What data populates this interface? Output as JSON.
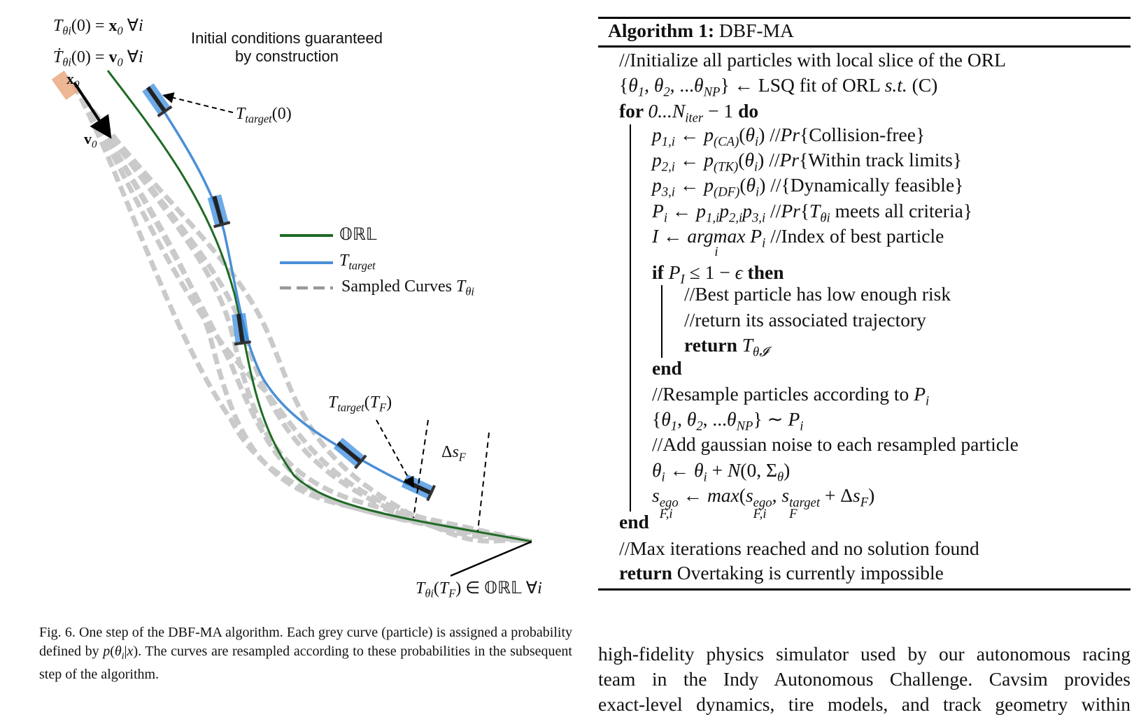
{
  "colors": {
    "orl": "#1e6b25",
    "target": "#4a8fd6",
    "sampled": "#b5b5b5",
    "car_blue": "#2e86de",
    "ego_car": "#e8a47a"
  },
  "figure": {
    "init_note": [
      "Initial conditions guaranteed",
      "by construction"
    ],
    "labels": {
      "init_pos": [
        {
          "s": "i",
          "t": "T"
        },
        {
          "s": "sub",
          "t": "θi"
        },
        {
          "s": "r",
          "t": "(0) = "
        },
        {
          "s": "b",
          "t": "x"
        },
        {
          "s": "sub",
          "t": "0"
        },
        {
          "s": "r",
          "t": " ∀"
        },
        {
          "s": "i",
          "t": "i"
        }
      ],
      "init_vel": [
        {
          "s": "i",
          "t": "Ṫ"
        },
        {
          "s": "sub",
          "t": "θi"
        },
        {
          "s": "r",
          "t": "(0) = "
        },
        {
          "s": "b",
          "t": "v"
        },
        {
          "s": "sub",
          "t": "0"
        },
        {
          "s": "r",
          "t": " ∀"
        },
        {
          "s": "i",
          "t": "i"
        }
      ],
      "x0": [
        {
          "s": "b",
          "t": "x"
        },
        {
          "s": "sub",
          "t": "0"
        }
      ],
      "v0": [
        {
          "s": "b",
          "t": "v"
        },
        {
          "s": "sub",
          "t": "0"
        }
      ],
      "target0": [
        {
          "s": "i",
          "t": "T"
        },
        {
          "s": "sub",
          "t": "target"
        },
        {
          "s": "r",
          "t": "(0)"
        }
      ],
      "targetTF": [
        {
          "s": "i",
          "t": "T"
        },
        {
          "s": "sub",
          "t": "target"
        },
        {
          "s": "r",
          "t": "("
        },
        {
          "s": "i",
          "t": "T"
        },
        {
          "s": "sub",
          "t": "F"
        },
        {
          "s": "r",
          "t": ")"
        }
      ],
      "delta_sF": [
        {
          "s": "r",
          "t": "Δ"
        },
        {
          "s": "i",
          "t": "s"
        },
        {
          "s": "sub",
          "t": "F"
        }
      ],
      "endpoint": [
        {
          "s": "i",
          "t": "T"
        },
        {
          "s": "sub",
          "t": "θi"
        },
        {
          "s": "r",
          "t": "("
        },
        {
          "s": "i",
          "t": "T"
        },
        {
          "s": "sub",
          "t": "F"
        },
        {
          "s": "r",
          "t": ") ∈ 𝕆ℝ𝕃 ∀"
        },
        {
          "s": "i",
          "t": "i"
        }
      ]
    },
    "legend": {
      "orl": [
        {
          "s": "r",
          "t": "𝕆ℝ𝕃"
        }
      ],
      "target": [
        {
          "s": "i",
          "t": "T"
        },
        {
          "s": "sub",
          "t": "target"
        }
      ],
      "sampled": [
        {
          "s": "r",
          "t": "Sampled Curves "
        },
        {
          "s": "i",
          "t": "T"
        },
        {
          "s": "sub",
          "t": "θi"
        }
      ]
    }
  },
  "caption": "Fig. 6.  One step of the DBF-MA algorithm. Each grey curve (particle) is assigned a probability defined by p(θi|x). The curves are resampled according to these probabilities in the subsequent step of the algorithm.",
  "caption_segs": [
    {
      "s": "r",
      "t": "Fig. 6.  One step of the DBF-MA algorithm. Each grey curve (particle) is assigned a probability defined by "
    },
    {
      "s": "i",
      "t": "p"
    },
    {
      "s": "r",
      "t": "("
    },
    {
      "s": "i",
      "t": "θ"
    },
    {
      "s": "sub",
      "t": "i"
    },
    {
      "s": "r",
      "t": "|"
    },
    {
      "s": "i",
      "t": "x"
    },
    {
      "s": "r",
      "t": ")"
    },
    {
      "s": "r",
      "t": ". The curves are resampled according to these probabilities in the subsequent step of the algorithm."
    }
  ],
  "algorithm": {
    "title": [
      {
        "s": "b",
        "t": "Algorithm 1:"
      },
      {
        "s": "r",
        "t": " DBF-MA"
      }
    ],
    "lines": [
      [
        {
          "s": "r",
          "t": "//Initialize all particles with local slice of the ORL"
        }
      ],
      [
        {
          "s": "r",
          "t": "{"
        },
        {
          "s": "i",
          "t": "θ"
        },
        {
          "s": "sub",
          "t": "1"
        },
        {
          "s": "r",
          "t": ", "
        },
        {
          "s": "i",
          "t": "θ"
        },
        {
          "s": "sub",
          "t": "2"
        },
        {
          "s": "r",
          "t": ", ..."
        },
        {
          "s": "i",
          "t": "θ"
        },
        {
          "s": "sub",
          "t": "NP"
        },
        {
          "s": "r",
          "t": "} ← LSQ fit of ORL "
        },
        {
          "s": "i",
          "t": "s.t."
        },
        {
          "s": "r",
          "t": " (C)"
        }
      ],
      [
        {
          "s": "b",
          "t": "for "
        },
        {
          "s": "i",
          "t": "0...N"
        },
        {
          "s": "sub",
          "t": "iter"
        },
        {
          "s": "r",
          "t": " − 1 "
        },
        {
          "s": "b",
          "t": "do"
        }
      ],
      [
        {
          "s": "i",
          "t": "p"
        },
        {
          "s": "sub",
          "t": "1,i"
        },
        {
          "s": "r",
          "t": " ← "
        },
        {
          "s": "i",
          "t": "p"
        },
        {
          "s": "sub",
          "t": "(CA)"
        },
        {
          "s": "r",
          "t": "("
        },
        {
          "s": "i",
          "t": "θ"
        },
        {
          "s": "sub",
          "t": "i"
        },
        {
          "s": "r",
          "t": ") //"
        },
        {
          "s": "i",
          "t": "Pr"
        },
        {
          "s": "r",
          "t": "{Collision-free}"
        }
      ],
      [
        {
          "s": "i",
          "t": "p"
        },
        {
          "s": "sub",
          "t": "2,i"
        },
        {
          "s": "r",
          "t": " ← "
        },
        {
          "s": "i",
          "t": "p"
        },
        {
          "s": "sub",
          "t": "(TK)"
        },
        {
          "s": "r",
          "t": "("
        },
        {
          "s": "i",
          "t": "θ"
        },
        {
          "s": "sub",
          "t": "i"
        },
        {
          "s": "r",
          "t": ") //"
        },
        {
          "s": "i",
          "t": "Pr"
        },
        {
          "s": "r",
          "t": "{Within track limits}"
        }
      ],
      [
        {
          "s": "i",
          "t": "p"
        },
        {
          "s": "sub",
          "t": "3,i"
        },
        {
          "s": "r",
          "t": " ← "
        },
        {
          "s": "i",
          "t": "p"
        },
        {
          "s": "sub",
          "t": "(DF)"
        },
        {
          "s": "r",
          "t": "("
        },
        {
          "s": "i",
          "t": "θ"
        },
        {
          "s": "sub",
          "t": "i"
        },
        {
          "s": "r",
          "t": ") //{Dynamically feasible}"
        }
      ],
      [
        {
          "s": "i",
          "t": "P"
        },
        {
          "s": "sub",
          "t": "i"
        },
        {
          "s": "r",
          "t": " ← "
        },
        {
          "s": "i",
          "t": "p"
        },
        {
          "s": "sub",
          "t": "1,i"
        },
        {
          "s": "i",
          "t": "p"
        },
        {
          "s": "sub",
          "t": "2,i"
        },
        {
          "s": "i",
          "t": "p"
        },
        {
          "s": "sub",
          "t": "3,i"
        },
        {
          "s": "r",
          "t": " //"
        },
        {
          "s": "i",
          "t": "Pr"
        },
        {
          "s": "r",
          "t": "{"
        },
        {
          "s": "i",
          "t": "T"
        },
        {
          "s": "sub",
          "t": "θi"
        },
        {
          "s": "r",
          "t": " meets all criteria}"
        }
      ],
      [
        {
          "s": "i",
          "t": "I"
        },
        {
          "s": "r",
          "t": " ← "
        },
        {
          "s": "under",
          "t": "argmax",
          "u": "i"
        },
        {
          "s": "r",
          "t": " "
        },
        {
          "s": "i",
          "t": "P"
        },
        {
          "s": "sub",
          "t": "i"
        },
        {
          "s": "r",
          "t": " //Index of best particle"
        }
      ],
      [
        {
          "s": "b",
          "t": "if "
        },
        {
          "s": "r",
          "t": " "
        },
        {
          "s": "i",
          "t": "P"
        },
        {
          "s": "sub",
          "t": "I"
        },
        {
          "s": "r",
          "t": " ≤ 1 − "
        },
        {
          "s": "i",
          "t": "ϵ"
        },
        {
          "s": "b",
          "t": " then"
        }
      ],
      [
        {
          "s": "r",
          "t": "//Best particle has low enough risk"
        }
      ],
      [
        {
          "s": "r",
          "t": "//return its associated trajectory"
        }
      ],
      [
        {
          "s": "b",
          "t": "return"
        },
        {
          "s": "r",
          "t": "  "
        },
        {
          "s": "i",
          "t": "T"
        },
        {
          "s": "sub",
          "t": "θ𝓘"
        }
      ],
      [
        {
          "s": "b",
          "t": "end"
        }
      ],
      [
        {
          "s": "r",
          "t": "//Resample particles according to "
        },
        {
          "s": "i",
          "t": "P"
        },
        {
          "s": "sub",
          "t": "i"
        }
      ],
      [
        {
          "s": "r",
          "t": "{"
        },
        {
          "s": "i",
          "t": "θ"
        },
        {
          "s": "sub",
          "t": "1"
        },
        {
          "s": "r",
          "t": ", "
        },
        {
          "s": "i",
          "t": "θ"
        },
        {
          "s": "sub",
          "t": "2"
        },
        {
          "s": "r",
          "t": ", ..."
        },
        {
          "s": "i",
          "t": "θ"
        },
        {
          "s": "sub",
          "t": "NP"
        },
        {
          "s": "r",
          "t": "} ∼ "
        },
        {
          "s": "i",
          "t": "P"
        },
        {
          "s": "sub",
          "t": "i"
        }
      ],
      [
        {
          "s": "r",
          "t": "//Add gaussian noise to each resampled particle"
        }
      ],
      [
        {
          "s": "i",
          "t": "θ"
        },
        {
          "s": "sub",
          "t": "i"
        },
        {
          "s": "r",
          "t": " ← "
        },
        {
          "s": "i",
          "t": "θ"
        },
        {
          "s": "sub",
          "t": "i"
        },
        {
          "s": "r",
          "t": " + "
        },
        {
          "s": "i",
          "t": "N"
        },
        {
          "s": "r",
          "t": "(0, Σ"
        },
        {
          "s": "sub",
          "t": "θ"
        },
        {
          "s": "r",
          "t": ")"
        }
      ],
      [
        {
          "s": "i",
          "t": "s"
        },
        {
          "s": "ss",
          "t": "ego",
          "u": "F,i"
        },
        {
          "s": "r",
          "t": " ← "
        },
        {
          "s": "i",
          "t": "max"
        },
        {
          "s": "r",
          "t": "("
        },
        {
          "s": "i",
          "t": "s"
        },
        {
          "s": "ss",
          "t": "ego",
          "u": "F,i"
        },
        {
          "s": "r",
          "t": ", "
        },
        {
          "s": "i",
          "t": "s"
        },
        {
          "s": "ss",
          "t": "target",
          "u": "F"
        },
        {
          "s": "r",
          "t": " + Δ"
        },
        {
          "s": "i",
          "t": "s"
        },
        {
          "s": "sub",
          "t": "F"
        },
        {
          "s": "r",
          "t": ")"
        }
      ],
      [
        {
          "s": "b",
          "t": "end"
        }
      ],
      [
        {
          "s": "r",
          "t": "//Max iterations reached and no solution found"
        }
      ],
      [
        {
          "s": "b",
          "t": "return"
        },
        {
          "s": "r",
          "t": "  Overtaking is currently impossible"
        }
      ]
    ]
  },
  "body_text": [
    "high-fidelity physics simulator used by our autonomous racing",
    "team in the Indy Autonomous Challenge. Cavsim provides",
    "exact-level dynamics, tire models, and track geometry within"
  ]
}
